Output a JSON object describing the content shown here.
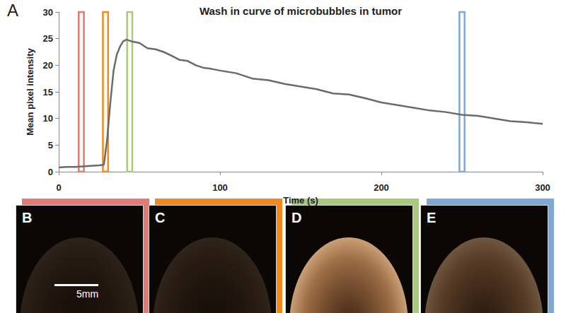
{
  "chart_data": {
    "type": "line",
    "panel_label": "A",
    "title": "Wash in curve of microbubbles in tumor",
    "xlabel": "Time (s)",
    "ylabel": "Mean pixel intensity",
    "color": "#6b6b6b",
    "grid": false,
    "x": [
      0,
      5,
      10,
      15,
      20,
      25,
      28,
      30,
      32,
      34,
      36,
      38,
      40,
      42,
      45,
      50,
      55,
      60,
      65,
      70,
      75,
      80,
      85,
      90,
      95,
      100,
      110,
      120,
      130,
      140,
      150,
      160,
      170,
      180,
      190,
      200,
      210,
      220,
      230,
      240,
      250,
      260,
      270,
      280,
      290,
      300
    ],
    "values": [
      0.8,
      0.9,
      0.9,
      1.0,
      1.1,
      1.2,
      1.3,
      6,
      13,
      19,
      22,
      23.5,
      24.5,
      24.8,
      24.5,
      24.2,
      23.2,
      23,
      22.5,
      21.8,
      21,
      20.8,
      20,
      19.5,
      19.3,
      19,
      18.5,
      17.5,
      17.2,
      16.5,
      16,
      15.5,
      14.7,
      14.5,
      13.8,
      13,
      12.5,
      12,
      11.5,
      11.2,
      10.7,
      10.5,
      10,
      9.5,
      9.3,
      9
    ],
    "xlim": [
      0,
      300
    ],
    "xticks": [
      0,
      100,
      200,
      300
    ],
    "ylim": [
      0,
      30
    ],
    "yticks": [
      0,
      5,
      10,
      15,
      20,
      25,
      30
    ],
    "time_markers": [
      {
        "x": 14,
        "color": "#e07a72",
        "panel": "B"
      },
      {
        "x": 29,
        "color": "#f08a1e",
        "panel": "C"
      },
      {
        "x": 44,
        "color": "#a9c97c",
        "panel": "D"
      },
      {
        "x": 250,
        "color": "#7ea8d8",
        "panel": "E"
      }
    ],
    "scale_bar": {
      "panel": "B",
      "label": "5mm"
    }
  }
}
